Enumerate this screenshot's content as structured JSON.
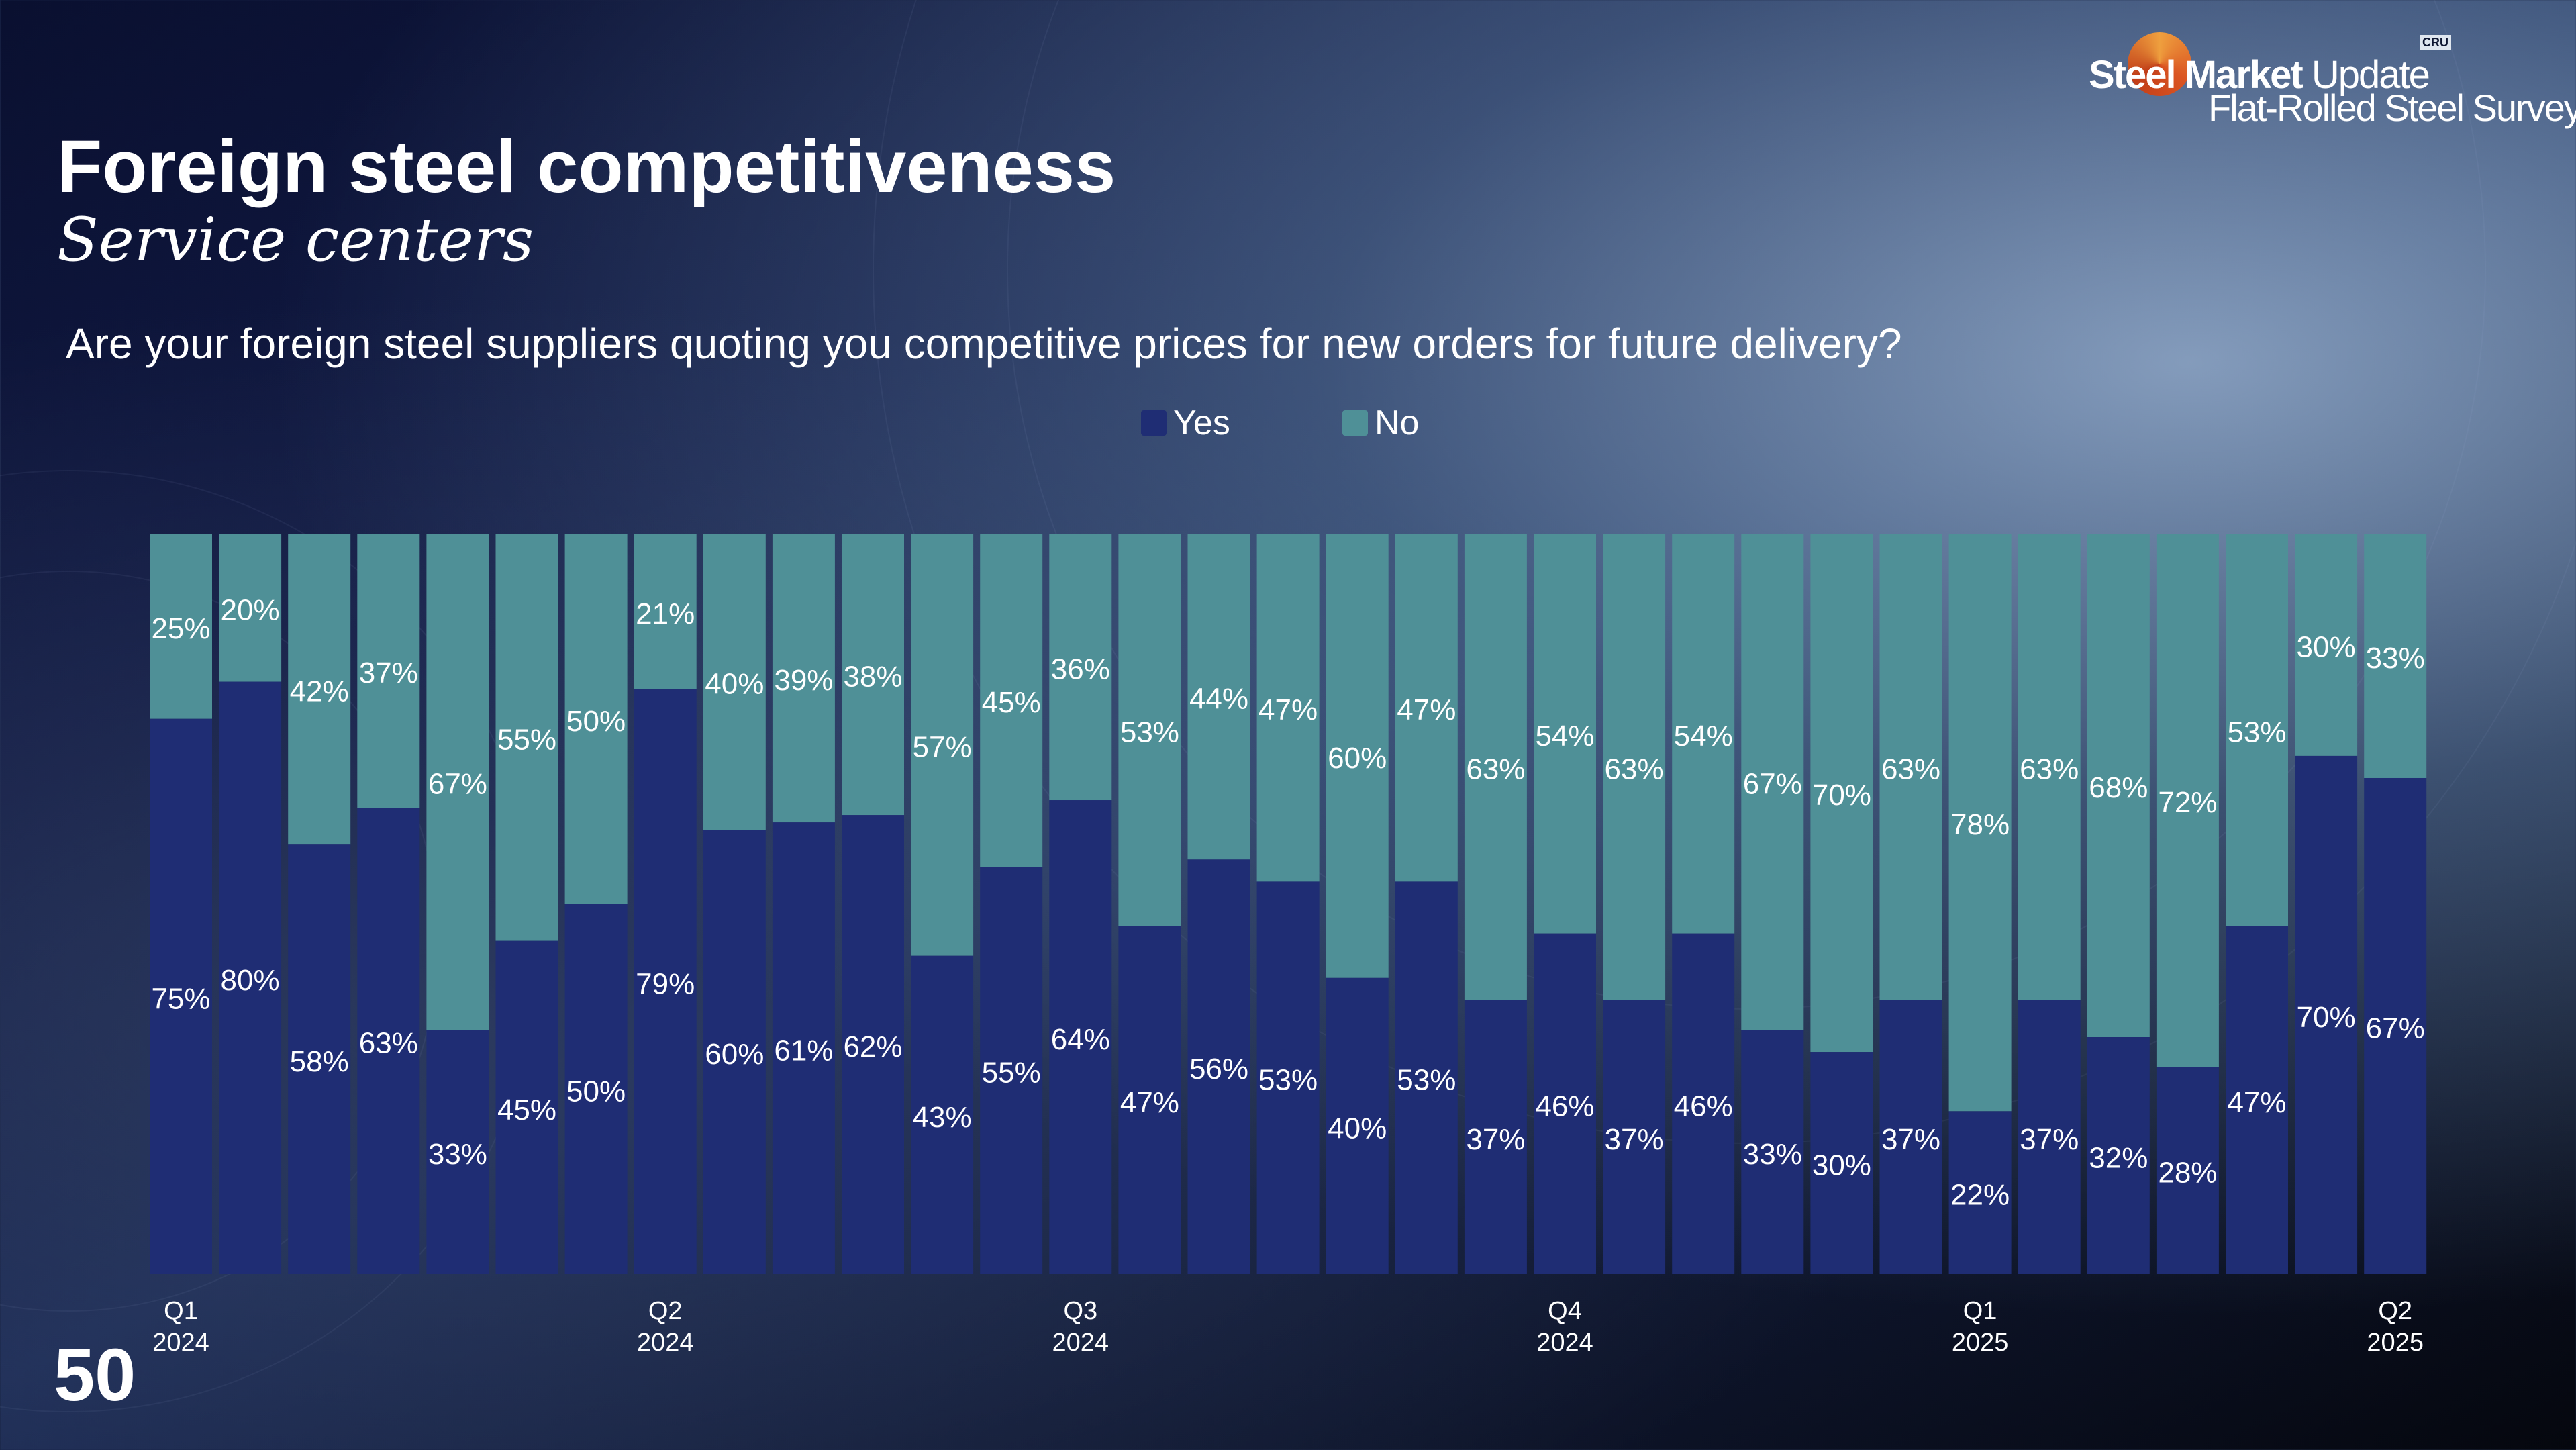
{
  "header": {
    "title": "Foreign steel competitiveness",
    "subtitle": "Service centers",
    "question": "Are your foreign steel suppliers quoting you competitive prices for new orders for future delivery?"
  },
  "logo": {
    "brand_bold": "Steel Market",
    "brand_light": "Update",
    "survey": "Flat-Rolled Steel Survey",
    "badge": "CRU"
  },
  "page_number": "50",
  "colors": {
    "yes": "#1f2d74",
    "no": "#4f9097"
  },
  "chart_data": {
    "type": "bar",
    "stacked": true,
    "title": "Are your foreign steel suppliers quoting you competitive prices for new orders for future delivery?",
    "series": [
      {
        "name": "Yes",
        "values": [
          75,
          80,
          58,
          63,
          33,
          45,
          50,
          79,
          60,
          61,
          62,
          43,
          55,
          64,
          47,
          56,
          53,
          40,
          53,
          37,
          46,
          37,
          46,
          33,
          30,
          37,
          22,
          37,
          32,
          28,
          47,
          70,
          67
        ]
      },
      {
        "name": "No",
        "values": [
          25,
          20,
          42,
          37,
          67,
          55,
          50,
          21,
          40,
          39,
          38,
          57,
          45,
          36,
          53,
          44,
          47,
          60,
          47,
          63,
          54,
          63,
          54,
          67,
          70,
          63,
          78,
          63,
          68,
          72,
          53,
          30,
          33
        ]
      }
    ],
    "value_suffix": "%",
    "ylim": [
      0,
      100
    ],
    "xlabel": "",
    "ylabel": "",
    "x_tick_labels": [
      {
        "index": 0,
        "quarter": "Q1",
        "year": "2024"
      },
      {
        "index": 7,
        "quarter": "Q2",
        "year": "2024"
      },
      {
        "index": 13,
        "quarter": "Q3",
        "year": "2024"
      },
      {
        "index": 20,
        "quarter": "Q4",
        "year": "2024"
      },
      {
        "index": 26,
        "quarter": "Q1",
        "year": "2025"
      },
      {
        "index": 32,
        "quarter": "Q2",
        "year": "2025"
      }
    ],
    "legend": {
      "position": "top-center",
      "entries": [
        "Yes",
        "No"
      ]
    },
    "grid": false
  }
}
